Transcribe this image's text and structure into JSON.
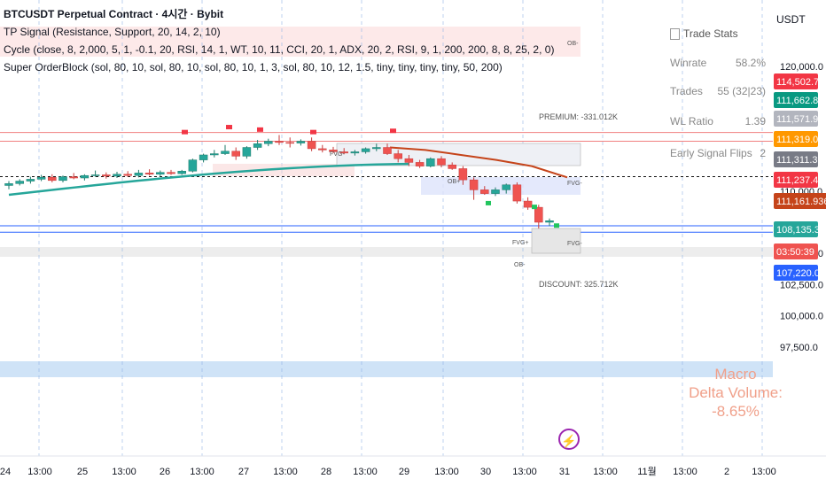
{
  "window": {
    "currency": "USDT"
  },
  "legend": {
    "title": "BTCUSDT Perpetual Contract · 4시간 · Bybit",
    "indicators": [
      "TP Signal (Resistance, Support, 20, 14, 2, 10)",
      "Cycle (close, 8, 2,000, 5, 1, -0.1, 20, RSI, 14, 1, WT, 10, 11, CCI, 20, 1, ADX, 20, 2, RSI, 9, 1, 200, 200, 8, 8, 25, 2, 0)",
      "Super OrderBlock (sol, 80, 10, sol, 80, 10, sol, 80, 10, 1, 3, sol, 80, 10, 12, 1.5, tiny, tiny, tiny, tiny, 50, 200)"
    ]
  },
  "trade_stats": {
    "title": "Trade Stats",
    "rows": [
      {
        "label": "Winrate",
        "value": "58.2%"
      },
      {
        "label": "Trades",
        "value": "55 (32|23)"
      },
      {
        "label": "WL Ratio",
        "value": "1.39"
      },
      {
        "label": "Early Signal Flips",
        "value": "2"
      }
    ]
  },
  "macro_panel": {
    "title": "Macro",
    "subtitle": "Delta Volume:",
    "value": "-8.65%"
  },
  "annotations": {
    "premium": "PREMIUM: -331.012K",
    "discount": "DISCOUNT: 325.712K",
    "fvg": "FVG-",
    "fvg_plus": "FVG+",
    "ob_minus": "OB-",
    "ob_plus": "OB+"
  },
  "price_badges": [
    {
      "text": "114,502.7",
      "value": 114502.7,
      "color": "#f23645"
    },
    {
      "text": "111,662.8",
      "value": 111662.8,
      "color": "#089981"
    },
    {
      "text": "111,571.9",
      "value": 111571.9,
      "color": "#b2b5be"
    },
    {
      "text": "111,319.0",
      "value": 111319.0,
      "color": "#ff9800"
    },
    {
      "text": "111,311.3",
      "value": 111311.3,
      "color": "#787b86"
    },
    {
      "text": "111,237.4",
      "value": 111237.4,
      "color": "#f23645"
    },
    {
      "text": "111,161.9366",
      "value": 111161.9366,
      "color": "#c5441a"
    },
    {
      "text": "108,135.3",
      "value": 108135.3,
      "color": "#26a69a"
    },
    {
      "text": "03:50:39",
      "value": 107620,
      "color": "#ef5350"
    },
    {
      "text": "107,220.0",
      "value": 107220.0,
      "color": "#2962ff"
    }
  ],
  "chart_data": {
    "type": "candlestick",
    "symbol": "BTCUSDT Perpetual Contract",
    "timeframe": "4시간",
    "exchange": "Bybit",
    "y_ticks": [
      {
        "value": 120000,
        "label": "120,000.0"
      },
      {
        "value": 110000,
        "label": "110,000.0"
      },
      {
        "value": 105000,
        "label": "105,000.0"
      },
      {
        "value": 102500,
        "label": "102,500.0"
      },
      {
        "value": 100000,
        "label": "100,000.0"
      },
      {
        "value": 97500,
        "label": "97,500.0"
      }
    ],
    "x_ticks": [
      "24",
      "13:00",
      "25",
      "13:00",
      "26",
      "13:00",
      "27",
      "13:00",
      "28",
      "13:00",
      "29",
      "13:00",
      "30",
      "13:00",
      "31",
      "13:00",
      "11월",
      "13:00",
      "2",
      "13:00"
    ],
    "candles": [
      {
        "o": 110450,
        "h": 110800,
        "l": 110150,
        "c": 110600
      },
      {
        "o": 110600,
        "h": 110950,
        "l": 110450,
        "c": 110800
      },
      {
        "o": 110800,
        "h": 111150,
        "l": 110600,
        "c": 110950
      },
      {
        "o": 110950,
        "h": 111300,
        "l": 110800,
        "c": 111100
      },
      {
        "o": 111100,
        "h": 111350,
        "l": 110700,
        "c": 110850
      },
      {
        "o": 110850,
        "h": 111250,
        "l": 110700,
        "c": 111150
      },
      {
        "o": 111150,
        "h": 111450,
        "l": 110950,
        "c": 111050
      },
      {
        "o": 111050,
        "h": 111350,
        "l": 110850,
        "c": 111250
      },
      {
        "o": 111250,
        "h": 111650,
        "l": 111150,
        "c": 111300
      },
      {
        "o": 111300,
        "h": 111500,
        "l": 111000,
        "c": 111200
      },
      {
        "o": 111200,
        "h": 111550,
        "l": 111050,
        "c": 111350
      },
      {
        "o": 111350,
        "h": 111600,
        "l": 111150,
        "c": 111250
      },
      {
        "o": 111250,
        "h": 111700,
        "l": 111100,
        "c": 111450
      },
      {
        "o": 111450,
        "h": 111750,
        "l": 111250,
        "c": 111350
      },
      {
        "o": 111350,
        "h": 111650,
        "l": 111200,
        "c": 111500
      },
      {
        "o": 111500,
        "h": 111700,
        "l": 111300,
        "c": 111400
      },
      {
        "o": 111400,
        "h": 111700,
        "l": 111300,
        "c": 111600
      },
      {
        "o": 111600,
        "h": 112600,
        "l": 111500,
        "c": 112500
      },
      {
        "o": 112500,
        "h": 113000,
        "l": 112300,
        "c": 112900
      },
      {
        "o": 112900,
        "h": 113300,
        "l": 112700,
        "c": 113000
      },
      {
        "o": 113000,
        "h": 113700,
        "l": 112900,
        "c": 113200
      },
      {
        "o": 113200,
        "h": 113500,
        "l": 112500,
        "c": 112800
      },
      {
        "o": 112800,
        "h": 113600,
        "l": 112600,
        "c": 113500
      },
      {
        "o": 113500,
        "h": 114100,
        "l": 113300,
        "c": 113800
      },
      {
        "o": 113800,
        "h": 114200,
        "l": 113600,
        "c": 114000
      },
      {
        "o": 114000,
        "h": 114500,
        "l": 113700,
        "c": 113900
      },
      {
        "o": 113900,
        "h": 114300,
        "l": 113500,
        "c": 113850
      },
      {
        "o": 113850,
        "h": 114150,
        "l": 113650,
        "c": 114000
      },
      {
        "o": 114000,
        "h": 114300,
        "l": 113200,
        "c": 113400
      },
      {
        "o": 113400,
        "h": 113700,
        "l": 113100,
        "c": 113300
      },
      {
        "o": 113300,
        "h": 113550,
        "l": 113050,
        "c": 113150
      },
      {
        "o": 113150,
        "h": 113450,
        "l": 112950,
        "c": 113050
      },
      {
        "o": 113050,
        "h": 113300,
        "l": 112850,
        "c": 113150
      },
      {
        "o": 113150,
        "h": 113500,
        "l": 113000,
        "c": 113400
      },
      {
        "o": 113400,
        "h": 113800,
        "l": 113200,
        "c": 113500
      },
      {
        "o": 113500,
        "h": 113800,
        "l": 112900,
        "c": 113000
      },
      {
        "o": 113000,
        "h": 113300,
        "l": 112300,
        "c": 112600
      },
      {
        "o": 112600,
        "h": 112900,
        "l": 112000,
        "c": 112300
      },
      {
        "o": 112300,
        "h": 112500,
        "l": 111850,
        "c": 112000
      },
      {
        "o": 112000,
        "h": 112700,
        "l": 111900,
        "c": 112600
      },
      {
        "o": 112600,
        "h": 112800,
        "l": 111900,
        "c": 112100
      },
      {
        "o": 112100,
        "h": 112300,
        "l": 111700,
        "c": 111800
      },
      {
        "o": 111800,
        "h": 112000,
        "l": 110500,
        "c": 110900
      },
      {
        "o": 110900,
        "h": 111100,
        "l": 109300,
        "c": 110100
      },
      {
        "o": 110100,
        "h": 110400,
        "l": 109700,
        "c": 109800
      },
      {
        "o": 109800,
        "h": 110300,
        "l": 109600,
        "c": 110100
      },
      {
        "o": 110100,
        "h": 110600,
        "l": 109800,
        "c": 110500
      },
      {
        "o": 110500,
        "h": 110700,
        "l": 109000,
        "c": 109200
      },
      {
        "o": 109200,
        "h": 109500,
        "l": 108500,
        "c": 108700
      },
      {
        "o": 108700,
        "h": 108900,
        "l": 107000,
        "c": 107500
      },
      {
        "o": 107500,
        "h": 107800,
        "l": 107200,
        "c": 107620
      }
    ]
  }
}
